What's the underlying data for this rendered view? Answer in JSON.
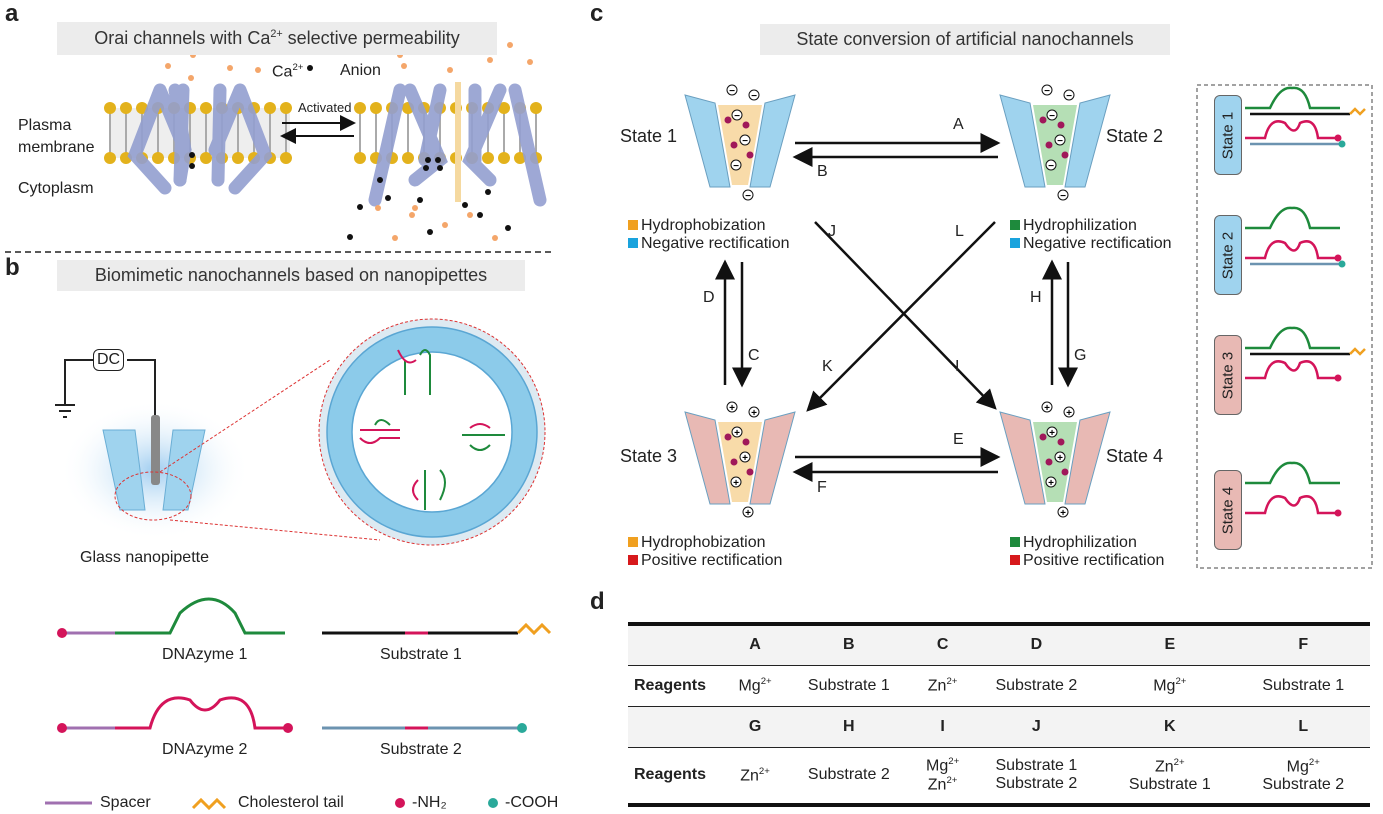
{
  "panel_a": {
    "label": "a",
    "title": "Orai channels with Ca2+ selective permeability",
    "legend_ca": "Ca2+",
    "legend_anion": "Anion",
    "plasma_membrane": "Plasma membrane",
    "cytoplasm": "Cytoplasm",
    "activated": "Activated"
  },
  "panel_b": {
    "label": "b",
    "title": "Biomimetic nanochannels based on nanopipettes",
    "dc": "DC",
    "pipette": "Glass nanopipette",
    "dnazyme1": "DNAzyme 1",
    "substrate1": "Substrate 1",
    "dnazyme2": "DNAzyme 2",
    "substrate2": "Substrate 2",
    "legend": {
      "spacer": "Spacer",
      "chol": "Cholesterol tail",
      "nh2": "-NH₂",
      "cooh": "-COOH"
    }
  },
  "panel_c": {
    "label": "c",
    "title": "State conversion of artificial nanochannels",
    "states": [
      "State 1",
      "State 2",
      "State 3",
      "State 4"
    ],
    "props": {
      "s1a": "Hydrophobization",
      "s1b": "Negative rectification",
      "s2a": "Hydrophilization",
      "s2b": "Negative rectification",
      "s3a": "Hydrophobization",
      "s3b": "Positive rectification",
      "s4a": "Hydrophilization",
      "s4b": "Positive rectification"
    },
    "arrows": [
      "A",
      "B",
      "C",
      "D",
      "E",
      "F",
      "G",
      "H",
      "I",
      "J",
      "K",
      "L"
    ]
  },
  "panel_d": {
    "label": "d",
    "row_label": "Reagents",
    "row1_headers": [
      "A",
      "B",
      "C",
      "D",
      "E",
      "F"
    ],
    "row1_values": [
      "Mg2+",
      "Substrate 1",
      "Zn2+",
      "Substrate 2",
      "Mg2+",
      "Substrate 1"
    ],
    "row2_headers": [
      "G",
      "H",
      "I",
      "J",
      "K",
      "L"
    ],
    "row2_values": [
      "Zn2+",
      "Substrate 2",
      "Mg2+ / Zn2+",
      "Substrate 1 / Substrate 2",
      "Zn2+ / Substrate 1",
      "Mg2+ / Substrate 2"
    ]
  },
  "colors": {
    "green": "#1e8a3c",
    "red": "#d4145a",
    "blue": "#9fd3ee",
    "pink": "#e8b9b4",
    "orange": "#f0a020",
    "spacer": "#a070b0",
    "teal": "#2aa99a",
    "membrane": "#8f9ccc",
    "lipid": "#e3b21c"
  }
}
